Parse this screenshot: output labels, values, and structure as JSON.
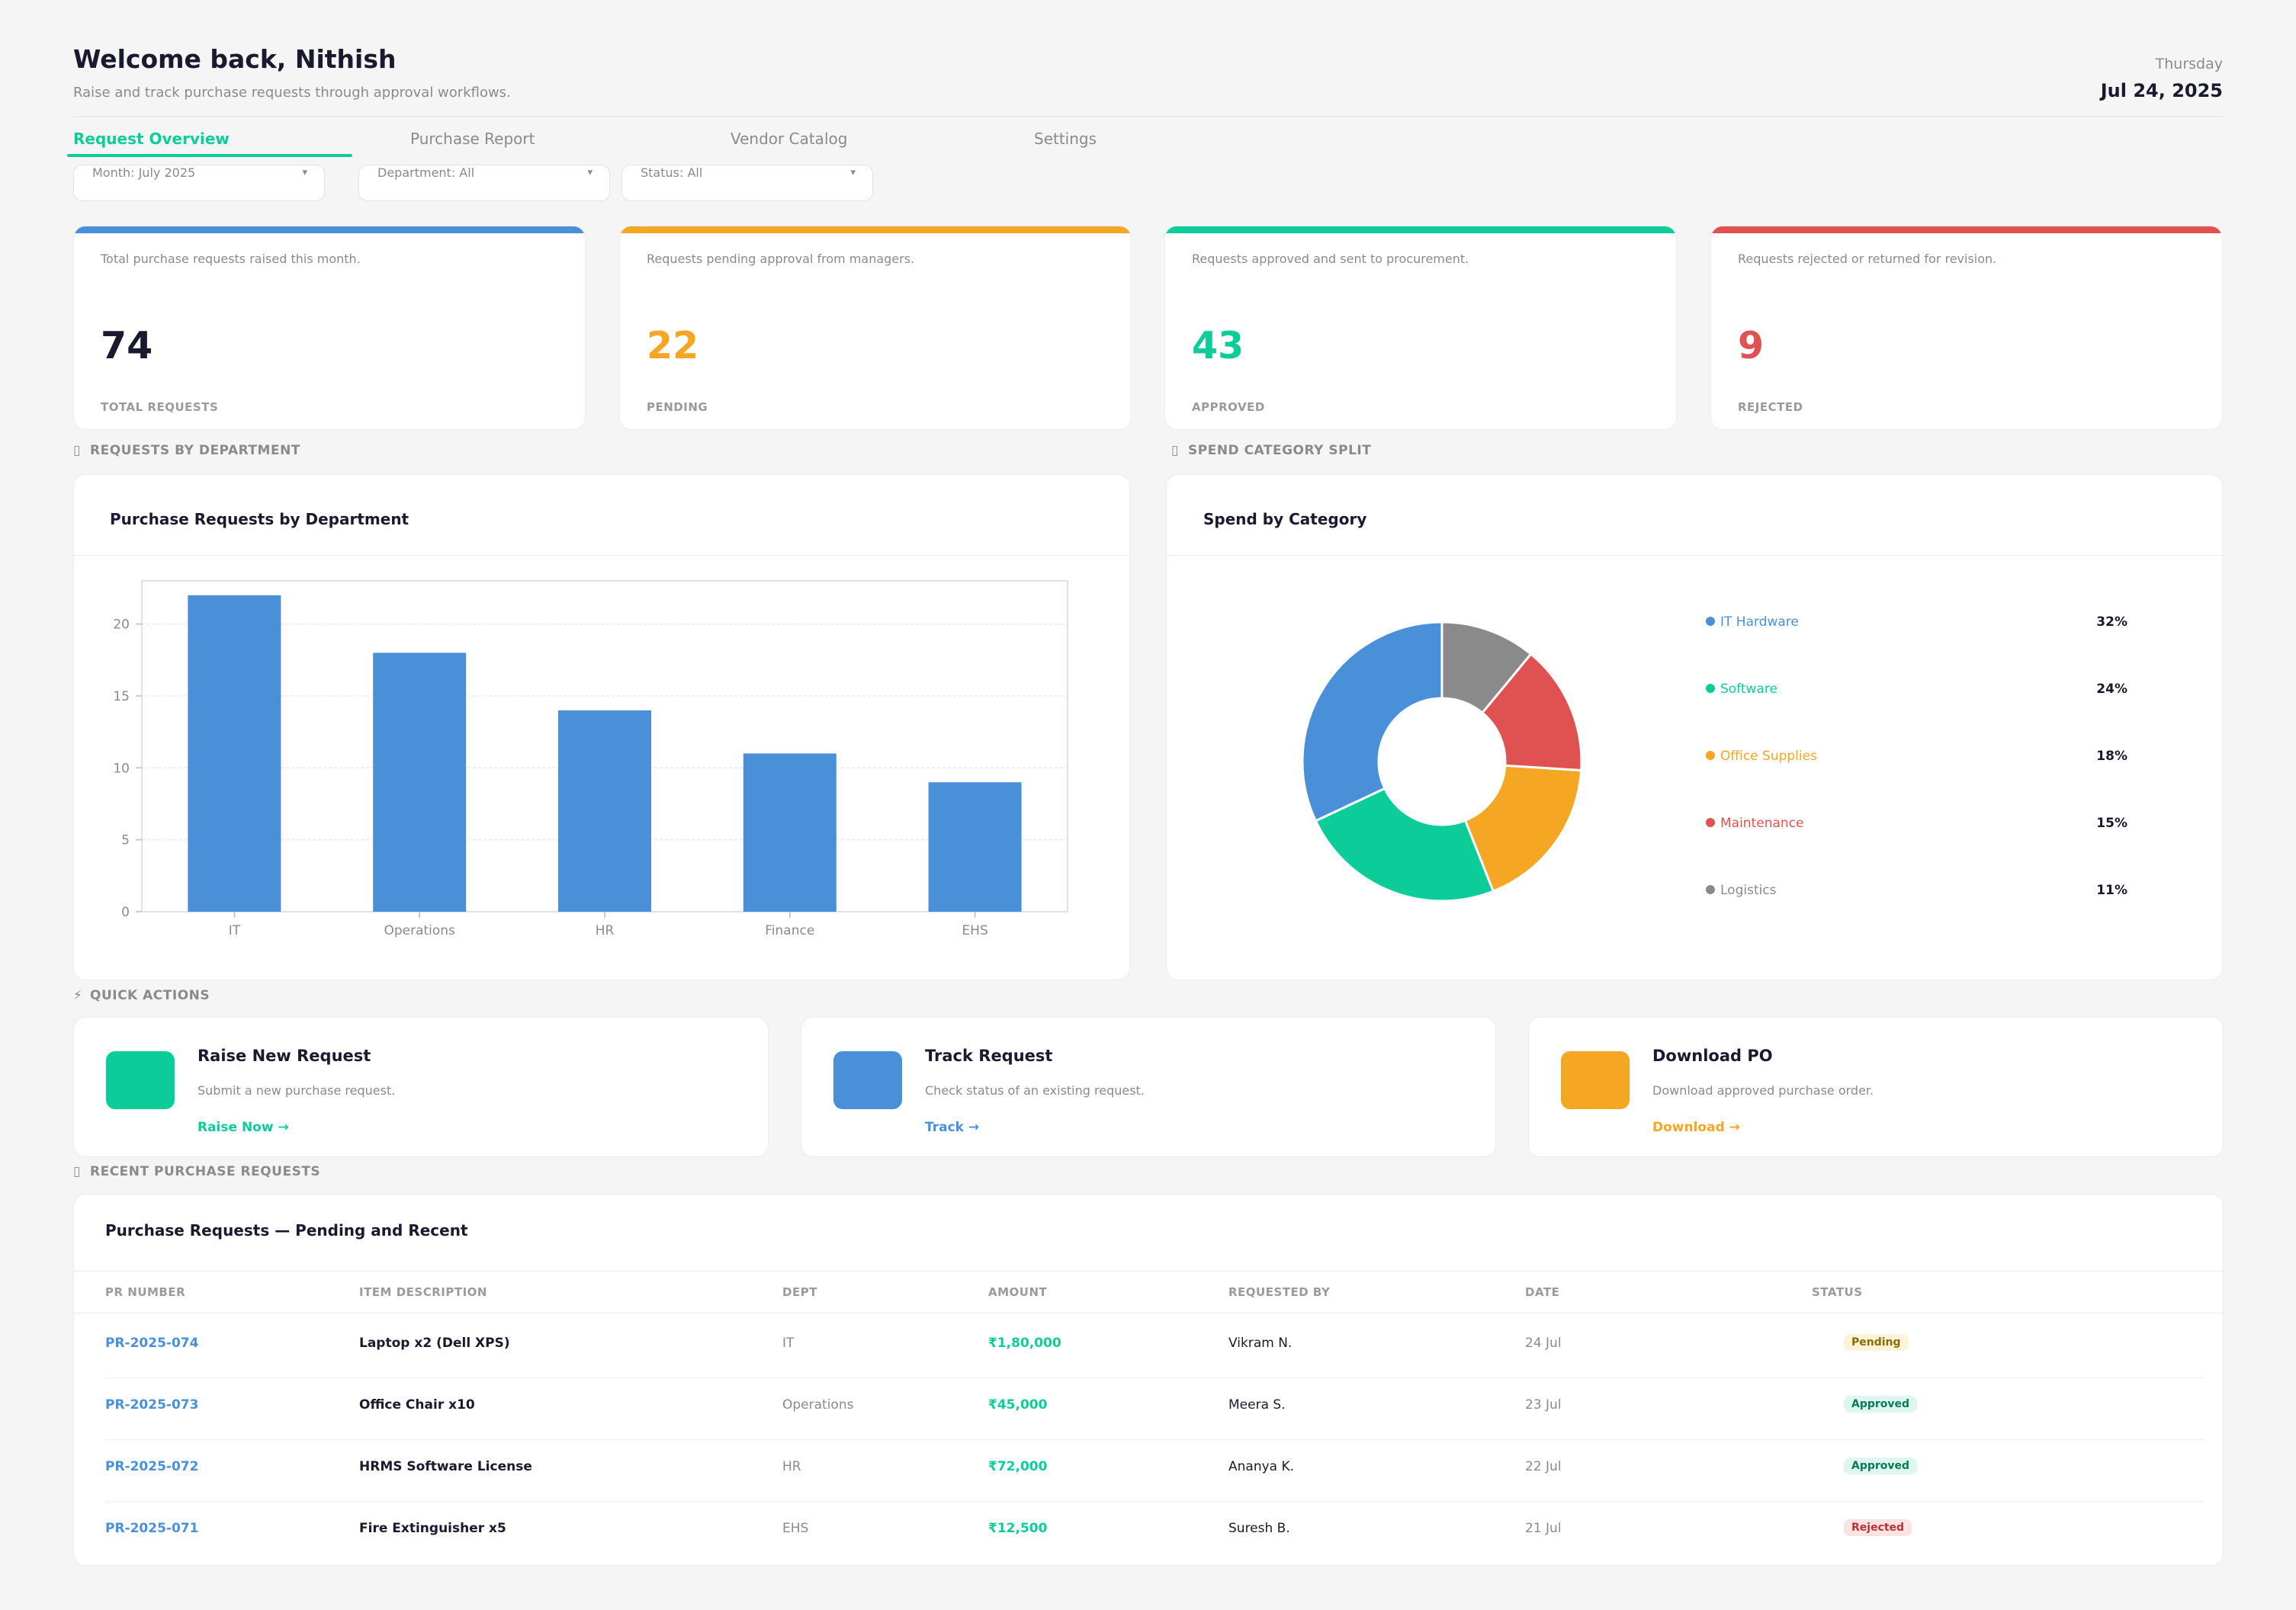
{
  "header": {
    "greeting": "Welcome back, Nithish",
    "subtitle": "Raise and track purchase requests through approval workflows.",
    "day": "Thursday",
    "date": "Jul 24, 2025"
  },
  "tabs": [
    {
      "label": "Request Overview",
      "active": true
    },
    {
      "label": "Purchase Report",
      "active": false
    },
    {
      "label": "Vendor Catalog",
      "active": false
    },
    {
      "label": "Settings",
      "active": false
    }
  ],
  "filters": [
    {
      "label": "Month: July 2025"
    },
    {
      "label": "Department: All"
    },
    {
      "label": "Status: All"
    }
  ],
  "caret": "▾",
  "kpis": [
    {
      "desc": "Total purchase requests raised this month.",
      "value": "74",
      "caption": "TOTAL REQUESTS",
      "color": "#4a90d9",
      "value_color": "#1a1a2e"
    },
    {
      "desc": "Requests pending approval from managers.",
      "value": "22",
      "caption": "PENDING",
      "color": "#f5a623",
      "value_color": "#f5a623"
    },
    {
      "desc": "Requests approved and sent to procurement.",
      "value": "43",
      "caption": "APPROVED",
      "color": "#0ccd9a",
      "value_color": "#0ccd9a"
    },
    {
      "desc": "Requests rejected or returned for revision.",
      "value": "9",
      "caption": "REJECTED",
      "color": "#e05252",
      "value_color": "#e05252"
    }
  ],
  "sections": {
    "dept": "REQUESTS BY DEPARTMENT",
    "spend": "SPEND CATEGORY SPLIT",
    "quick": "QUICK ACTIONS",
    "recent": "RECENT PURCHASE REQUESTS"
  },
  "section_icons": {
    "box": "▯",
    "bolt": "⚡"
  },
  "bar_card": {
    "title": "Purchase Requests by Department"
  },
  "pie_card": {
    "title": "Spend by Category"
  },
  "chart_data": [
    {
      "type": "bar",
      "title": "Purchase Requests by Department",
      "categories": [
        "IT",
        "Operations",
        "HR",
        "Finance",
        "EHS"
      ],
      "values": [
        22,
        18,
        14,
        11,
        9
      ],
      "ylim": [
        0,
        23
      ],
      "yticks": [
        0,
        5,
        10,
        15,
        20
      ],
      "grid": true,
      "color": "#4a90d9"
    },
    {
      "type": "pie",
      "title": "Spend by Category",
      "donut": true,
      "slices": [
        {
          "label": "IT Hardware",
          "value": 32,
          "pct": "32%",
          "color": "#4a90d9"
        },
        {
          "label": "Software",
          "value": 24,
          "pct": "24%",
          "color": "#0ccd9a"
        },
        {
          "label": "Office Supplies",
          "value": 18,
          "pct": "18%",
          "color": "#f5a623"
        },
        {
          "label": "Maintenance",
          "value": 15,
          "pct": "15%",
          "color": "#e05252"
        },
        {
          "label": "Logistics",
          "value": 11,
          "pct": "11%",
          "color": "#8a8a8a"
        }
      ],
      "legend": "right"
    }
  ],
  "quick_actions": [
    {
      "title": "Raise New Request",
      "desc": "Submit a new purchase request.",
      "link": "Raise Now →",
      "color": "#0ccd9a"
    },
    {
      "title": "Track Request",
      "desc": "Check status of an existing request.",
      "link": "Track →",
      "color": "#4a90d9"
    },
    {
      "title": "Download PO",
      "desc": "Download approved purchase order.",
      "link": "Download →",
      "color": "#f5a623"
    }
  ],
  "table": {
    "title": "Purchase Requests — Pending and Recent",
    "headers": [
      "PR NUMBER",
      "ITEM DESCRIPTION",
      "DEPT",
      "AMOUNT",
      "REQUESTED BY",
      "DATE",
      "STATUS"
    ],
    "rows": [
      {
        "pr": "PR-2025-074",
        "item": "Laptop x2 (Dell XPS)",
        "dept": "IT",
        "amount": "₹1,80,000",
        "by": "Vikram N.",
        "date": "24 Jul",
        "status": "Pending"
      },
      {
        "pr": "PR-2025-073",
        "item": "Office Chair x10",
        "dept": "Operations",
        "amount": "₹45,000",
        "by": "Meera S.",
        "date": "23 Jul",
        "status": "Approved"
      },
      {
        "pr": "PR-2025-072",
        "item": "HRMS Software License",
        "dept": "HR",
        "amount": "₹72,000",
        "by": "Ananya K.",
        "date": "22 Jul",
        "status": "Approved"
      },
      {
        "pr": "PR-2025-071",
        "item": "Fire Extinguisher x5",
        "dept": "EHS",
        "amount": "₹12,500",
        "by": "Suresh B.",
        "date": "21 Jul",
        "status": "Rejected"
      }
    ],
    "status_styles": {
      "Pending": {
        "fg": "#8a6d00",
        "bg": "#fdf3d9"
      },
      "Approved": {
        "fg": "#067a5a",
        "bg": "#ddf7ef"
      },
      "Rejected": {
        "fg": "#b83232",
        "bg": "#fbe3e3"
      }
    }
  }
}
